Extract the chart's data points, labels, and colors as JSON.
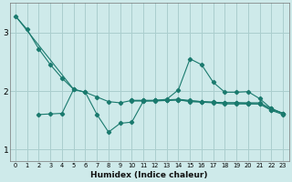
{
  "xlabel": "Humidex (Indice chaleur)",
  "bg_color": "#ceeaea",
  "grid_color": "#aacece",
  "line_color": "#1a7a6e",
  "x_values": [
    0,
    1,
    2,
    3,
    4,
    5,
    6,
    7,
    8,
    9,
    10,
    11,
    12,
    13,
    14,
    15,
    16,
    17,
    18,
    19,
    20,
    21,
    22,
    23
  ],
  "lines": [
    {
      "x": [
        0,
        1,
        2,
        3,
        4,
        5,
        6,
        7,
        8,
        9,
        10,
        11,
        12,
        13,
        14,
        15,
        16,
        17,
        18,
        19,
        20,
        21,
        22,
        23
      ],
      "y": [
        3.28,
        3.05,
        2.72,
        2.45,
        2.22,
        2.03,
        1.98,
        1.9,
        1.82,
        1.8,
        1.84,
        1.84,
        1.84,
        1.84,
        1.85,
        1.83,
        1.82,
        1.81,
        1.8,
        1.8,
        1.79,
        1.78,
        1.68,
        1.62
      ]
    },
    {
      "x": [
        0,
        5
      ],
      "y": [
        3.28,
        2.03
      ]
    },
    {
      "x": [
        2,
        3,
        4,
        5,
        6,
        7,
        8,
        9,
        10,
        11,
        12,
        13,
        14,
        15,
        16,
        17,
        18,
        19,
        20,
        21,
        22,
        23
      ],
      "y": [
        1.6,
        1.61,
        1.62,
        2.03,
        1.98,
        1.6,
        1.3,
        1.45,
        1.47,
        1.83,
        1.84,
        1.86,
        2.02,
        2.55,
        2.45,
        2.15,
        1.98,
        1.98,
        1.99,
        1.87,
        1.7,
        1.62
      ]
    },
    {
      "x": [
        10,
        11,
        12,
        13,
        14,
        15,
        16,
        17,
        18,
        19,
        20,
        21,
        22,
        23
      ],
      "y": [
        1.84,
        1.84,
        1.84,
        1.85,
        1.86,
        1.84,
        1.82,
        1.81,
        1.8,
        1.8,
        1.8,
        1.8,
        1.7,
        1.62
      ]
    },
    {
      "x": [
        10,
        11,
        12,
        13,
        14,
        15,
        16,
        17,
        18,
        19,
        20,
        21,
        22,
        23
      ],
      "y": [
        1.83,
        1.83,
        1.83,
        1.84,
        1.85,
        1.82,
        1.81,
        1.8,
        1.78,
        1.78,
        1.78,
        1.78,
        1.67,
        1.6
      ]
    }
  ],
  "ylim": [
    0.8,
    3.5
  ],
  "yticks": [
    1,
    2,
    3
  ],
  "xlim": [
    -0.5,
    23.5
  ]
}
